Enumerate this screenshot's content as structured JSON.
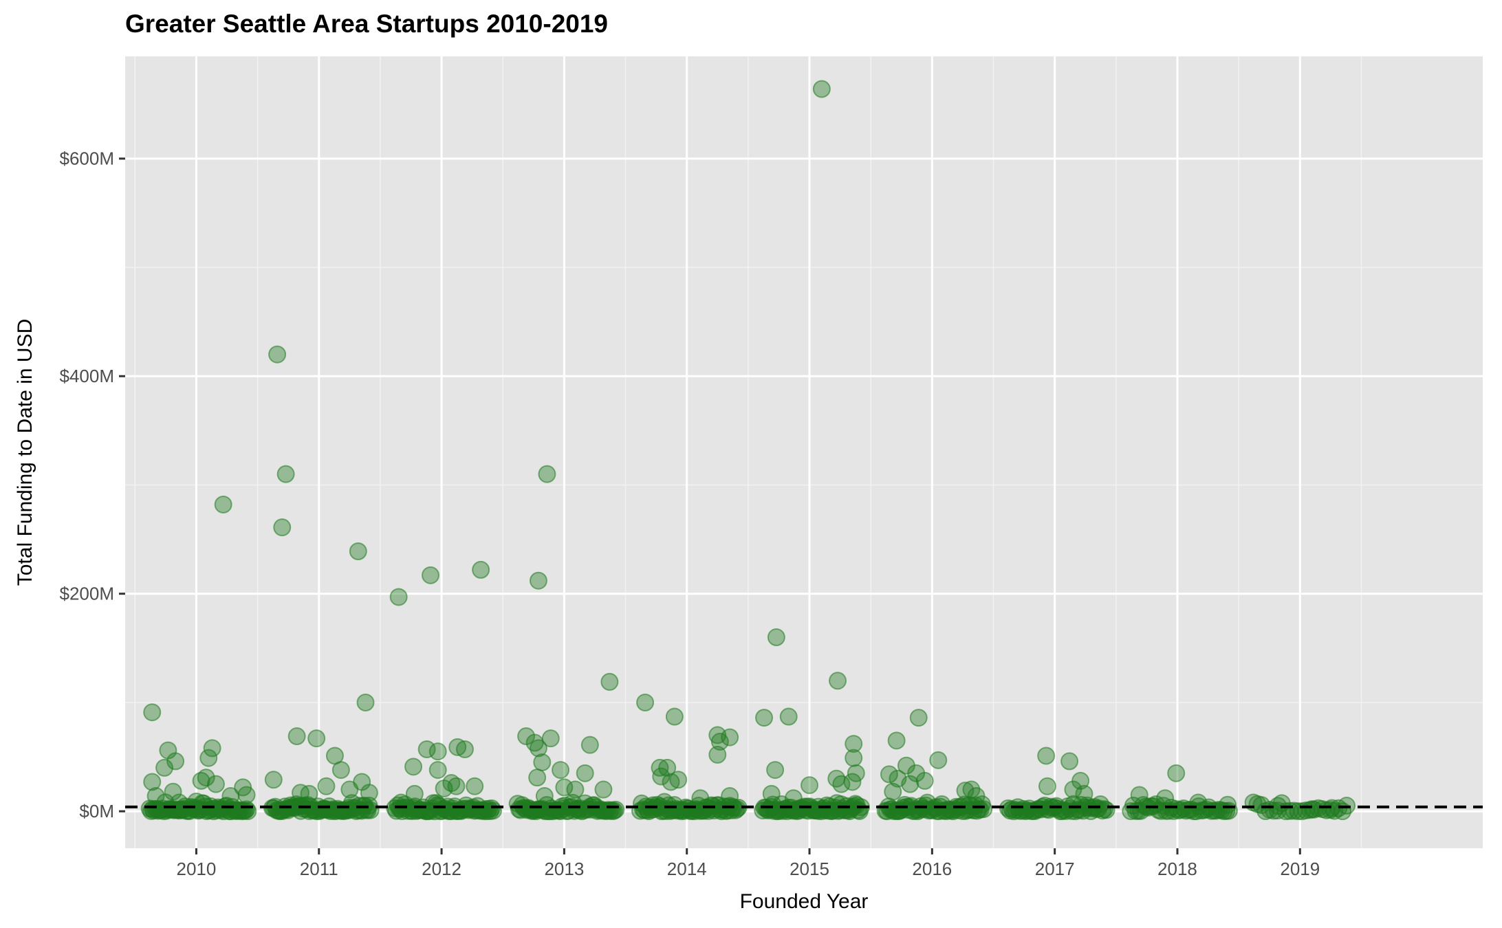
{
  "chart_data": {
    "type": "scatter",
    "title": "Greater Seattle Area Startups 2010-2019",
    "xlabel": "Founded Year",
    "ylabel": "Total Funding to Date in USD",
    "x_ticks": [
      "2010",
      "2011",
      "2012",
      "2013",
      "2014",
      "2015",
      "2016",
      "2017",
      "2018",
      "2019"
    ],
    "y_ticks": [
      {
        "value": 0,
        "label": "$0M"
      },
      {
        "value": 200,
        "label": "$200M"
      },
      {
        "value": 400,
        "label": "$400M"
      },
      {
        "value": 600,
        "label": "$600M"
      }
    ],
    "y_unit": "USD millions",
    "ylim": [
      -34,
      694
    ],
    "xlim": [
      2009.42,
      2020.49
    ],
    "grid": true,
    "reference_line": {
      "y": 4,
      "style": "dashed",
      "color": "#000000"
    },
    "point_color": "#1f7a1f",
    "points": [
      {
        "x": 2009.64,
        "y": 91
      },
      {
        "x": 2009.64,
        "y": 27
      },
      {
        "x": 2009.67,
        "y": 14
      },
      {
        "x": 2009.74,
        "y": 40
      },
      {
        "x": 2009.77,
        "y": 56
      },
      {
        "x": 2009.83,
        "y": 46
      },
      {
        "x": 2009.81,
        "y": 18
      },
      {
        "x": 2009.86,
        "y": 8
      },
      {
        "x": 2010.0,
        "y": 9
      },
      {
        "x": 2010.04,
        "y": 28
      },
      {
        "x": 2010.08,
        "y": 31
      },
      {
        "x": 2010.1,
        "y": 49
      },
      {
        "x": 2010.13,
        "y": 58
      },
      {
        "x": 2010.16,
        "y": 25
      },
      {
        "x": 2010.22,
        "y": 282
      },
      {
        "x": 2010.28,
        "y": 14
      },
      {
        "x": 2010.38,
        "y": 22
      },
      {
        "x": 2010.41,
        "y": 15
      },
      {
        "x": 2010.63,
        "y": 29
      },
      {
        "x": 2010.66,
        "y": 420
      },
      {
        "x": 2010.7,
        "y": 261
      },
      {
        "x": 2010.73,
        "y": 310
      },
      {
        "x": 2010.82,
        "y": 69
      },
      {
        "x": 2010.85,
        "y": 17
      },
      {
        "x": 2010.92,
        "y": 16
      },
      {
        "x": 2010.98,
        "y": 67
      },
      {
        "x": 2011.06,
        "y": 23
      },
      {
        "x": 2011.13,
        "y": 51
      },
      {
        "x": 2011.18,
        "y": 38
      },
      {
        "x": 2011.25,
        "y": 20
      },
      {
        "x": 2011.32,
        "y": 239
      },
      {
        "x": 2011.35,
        "y": 27
      },
      {
        "x": 2011.38,
        "y": 100
      },
      {
        "x": 2011.41,
        "y": 17
      },
      {
        "x": 2011.65,
        "y": 197
      },
      {
        "x": 2011.67,
        "y": 8
      },
      {
        "x": 2011.77,
        "y": 41
      },
      {
        "x": 2011.78,
        "y": 16
      },
      {
        "x": 2011.88,
        "y": 57
      },
      {
        "x": 2011.91,
        "y": 217
      },
      {
        "x": 2011.97,
        "y": 55
      },
      {
        "x": 2011.97,
        "y": 38
      },
      {
        "x": 2012.02,
        "y": 21
      },
      {
        "x": 2012.08,
        "y": 26
      },
      {
        "x": 2012.12,
        "y": 23
      },
      {
        "x": 2012.13,
        "y": 59
      },
      {
        "x": 2012.19,
        "y": 57
      },
      {
        "x": 2012.27,
        "y": 23
      },
      {
        "x": 2012.32,
        "y": 222
      },
      {
        "x": 2012.69,
        "y": 69
      },
      {
        "x": 2012.76,
        "y": 63
      },
      {
        "x": 2012.79,
        "y": 212
      },
      {
        "x": 2012.79,
        "y": 58
      },
      {
        "x": 2012.78,
        "y": 31
      },
      {
        "x": 2012.82,
        "y": 45
      },
      {
        "x": 2012.84,
        "y": 14
      },
      {
        "x": 2012.86,
        "y": 310
      },
      {
        "x": 2012.89,
        "y": 67
      },
      {
        "x": 2012.97,
        "y": 38
      },
      {
        "x": 2013.0,
        "y": 22
      },
      {
        "x": 2013.09,
        "y": 20
      },
      {
        "x": 2013.17,
        "y": 35
      },
      {
        "x": 2013.21,
        "y": 61
      },
      {
        "x": 2013.32,
        "y": 20
      },
      {
        "x": 2013.37,
        "y": 119
      },
      {
        "x": 2013.66,
        "y": 100
      },
      {
        "x": 2013.78,
        "y": 40
      },
      {
        "x": 2013.79,
        "y": 32
      },
      {
        "x": 2013.84,
        "y": 40
      },
      {
        "x": 2013.87,
        "y": 27
      },
      {
        "x": 2013.9,
        "y": 87
      },
      {
        "x": 2013.93,
        "y": 29
      },
      {
        "x": 2014.11,
        "y": 12
      },
      {
        "x": 2014.25,
        "y": 70
      },
      {
        "x": 2014.25,
        "y": 52
      },
      {
        "x": 2014.27,
        "y": 64
      },
      {
        "x": 2014.35,
        "y": 68
      },
      {
        "x": 2014.35,
        "y": 14
      },
      {
        "x": 2014.63,
        "y": 86
      },
      {
        "x": 2014.69,
        "y": 16
      },
      {
        "x": 2014.72,
        "y": 38
      },
      {
        "x": 2014.73,
        "y": 160
      },
      {
        "x": 2014.83,
        "y": 87
      },
      {
        "x": 2014.87,
        "y": 12
      },
      {
        "x": 2015.0,
        "y": 24
      },
      {
        "x": 2015.1,
        "y": 664
      },
      {
        "x": 2015.23,
        "y": 120
      },
      {
        "x": 2015.22,
        "y": 30
      },
      {
        "x": 2015.26,
        "y": 25
      },
      {
        "x": 2015.35,
        "y": 27
      },
      {
        "x": 2015.36,
        "y": 62
      },
      {
        "x": 2015.36,
        "y": 49
      },
      {
        "x": 2015.38,
        "y": 35
      },
      {
        "x": 2015.65,
        "y": 34
      },
      {
        "x": 2015.71,
        "y": 65
      },
      {
        "x": 2015.72,
        "y": 30
      },
      {
        "x": 2015.68,
        "y": 18
      },
      {
        "x": 2015.79,
        "y": 42
      },
      {
        "x": 2015.82,
        "y": 25
      },
      {
        "x": 2015.87,
        "y": 35
      },
      {
        "x": 2015.89,
        "y": 86
      },
      {
        "x": 2015.94,
        "y": 28
      },
      {
        "x": 2016.05,
        "y": 47
      },
      {
        "x": 2016.27,
        "y": 19
      },
      {
        "x": 2016.32,
        "y": 20
      },
      {
        "x": 2016.36,
        "y": 14
      },
      {
        "x": 2016.93,
        "y": 51
      },
      {
        "x": 2016.94,
        "y": 23
      },
      {
        "x": 2017.12,
        "y": 46
      },
      {
        "x": 2017.15,
        "y": 20
      },
      {
        "x": 2017.21,
        "y": 28
      },
      {
        "x": 2017.24,
        "y": 16
      },
      {
        "x": 2017.69,
        "y": 15
      },
      {
        "x": 2017.99,
        "y": 35
      },
      {
        "x": 2017.9,
        "y": 12
      },
      {
        "x": 2018.17,
        "y": 8
      },
      {
        "x": 2018.41,
        "y": 6
      },
      {
        "x": 2018.82,
        "y": 5
      },
      {
        "x": 2019.1,
        "y": 2
      },
      {
        "x": 2019.26,
        "y": 3
      }
    ],
    "clusters": [
      {
        "x0": 2009.62,
        "x1": 2010.42,
        "n": 70
      },
      {
        "x0": 2010.62,
        "x1": 2011.42,
        "n": 70
      },
      {
        "x0": 2011.62,
        "x1": 2012.42,
        "n": 70
      },
      {
        "x0": 2012.62,
        "x1": 2013.42,
        "n": 65
      },
      {
        "x0": 2013.62,
        "x1": 2014.42,
        "n": 70
      },
      {
        "x0": 2014.62,
        "x1": 2015.42,
        "n": 70
      },
      {
        "x0": 2015.62,
        "x1": 2016.42,
        "n": 62
      },
      {
        "x0": 2016.62,
        "x1": 2017.42,
        "n": 52
      },
      {
        "x0": 2017.62,
        "x1": 2018.42,
        "n": 40
      },
      {
        "x0": 2018.62,
        "x1": 2019.38,
        "n": 24
      }
    ]
  }
}
